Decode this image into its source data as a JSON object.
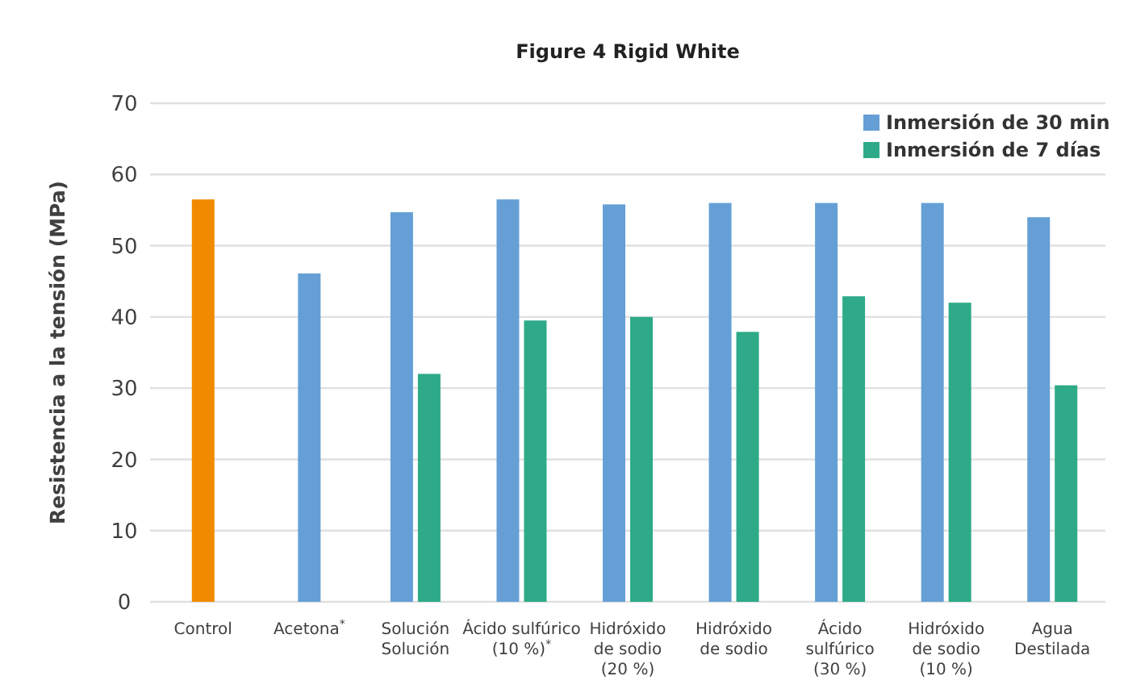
{
  "chart_data": {
    "type": "bar",
    "title": "Figure 4 Rigid White",
    "ylabel": "Resistencia a la tensión (MPa)",
    "categories": [
      "Control",
      "Acetona$^{*}$",
      "Solución\nSolución",
      "Ácido sulfúrico\n(10 %)$^{*}$",
      "Hidróxido\nde sodio\n(20 %)",
      "Hidróxido\nde sodio",
      "Ácido\nsulfúrico\n(30 %)",
      "Hidróxido\nde sodio\n(10 %)",
      "Agua\nDestilada"
    ],
    "series": [
      {
        "name": "Inmersión de 30 min",
        "color": "#659fd6",
        "colors": [
          "#f28a00",
          "#659fd6",
          "#659fd6",
          "#659fd6",
          "#659fd6",
          "#659fd6",
          "#659fd6",
          "#659fd6",
          "#659fd6"
        ],
        "values": [
          56.5,
          46.1,
          54.7,
          56.5,
          55.8,
          56,
          56,
          56,
          54
        ]
      },
      {
        "name": "Inmersión de 7 días",
        "color": "#2eaa88",
        "values": [
          null,
          null,
          32,
          39.5,
          40,
          37.9,
          42.9,
          42,
          30.4
        ]
      }
    ],
    "ylim": [
      0,
      70
    ],
    "yticks": [
      0,
      10,
      20,
      30,
      40,
      50,
      60,
      70
    ],
    "grid": "y",
    "legend": "top right"
  }
}
